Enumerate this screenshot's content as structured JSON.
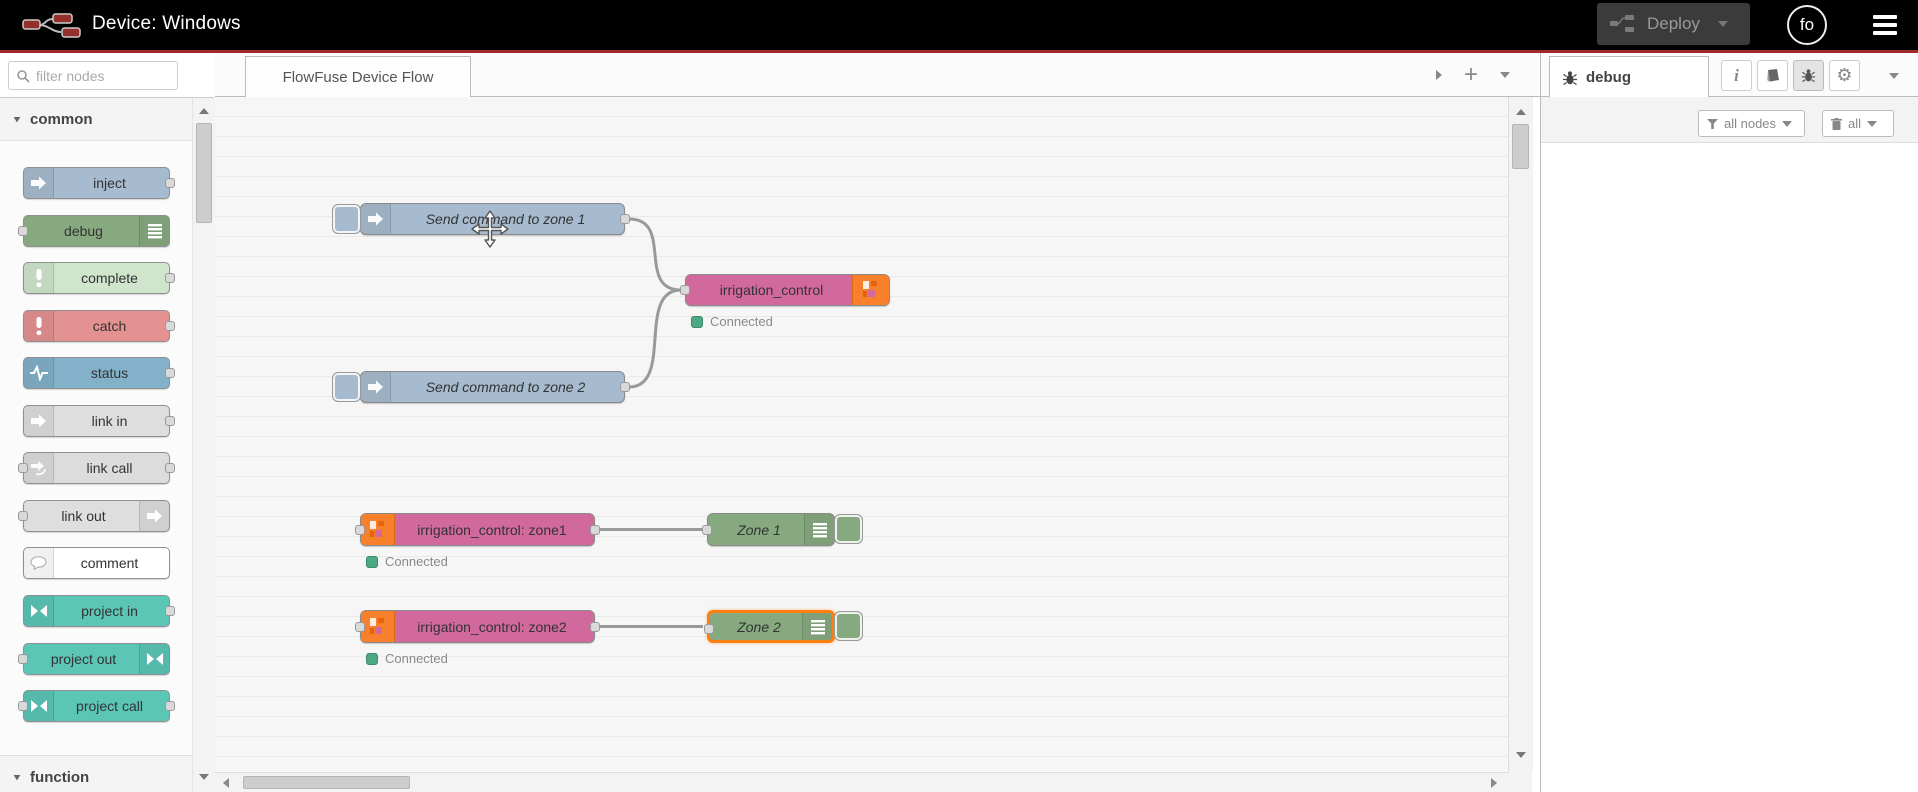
{
  "header": {
    "title": "Device: Windows",
    "deploy_label": "Deploy",
    "avatar_label": "fo"
  },
  "palette": {
    "filter_placeholder": "filter nodes",
    "category_common": "common",
    "category_function": "function",
    "items": [
      {
        "label": "inject",
        "color": "#a6bbcf",
        "icon": "inject-arrow-icon",
        "icon_side": "left",
        "ports": "out"
      },
      {
        "label": "debug",
        "color": "#87a980",
        "icon": "debug-list-icon",
        "icon_side": "right",
        "ports": "in"
      },
      {
        "label": "complete",
        "color": "#cfe6cd",
        "icon": "exclamation-icon",
        "icon_side": "left",
        "ports": "out"
      },
      {
        "label": "catch",
        "color": "#e49191",
        "icon": "exclamation-icon",
        "icon_side": "left",
        "ports": "out"
      },
      {
        "label": "status",
        "color": "#82b1c9",
        "icon": "pulse-icon",
        "icon_side": "left",
        "ports": "out"
      },
      {
        "label": "link in",
        "color": "#dedede",
        "icon": "link-arrow-icon",
        "icon_side": "left",
        "ports": "out"
      },
      {
        "label": "link call",
        "color": "#dcdcdc",
        "icon": "link-call-icon",
        "icon_side": "left",
        "ports": "both"
      },
      {
        "label": "link out",
        "color": "#dedede",
        "icon": "link-arrow-icon",
        "icon_side": "right",
        "ports": "in"
      },
      {
        "label": "comment",
        "color": "#ffffff",
        "icon": "comment-bubble-icon",
        "icon_side": "left",
        "ports": "none"
      },
      {
        "label": "project in",
        "color": "#5bc5b6",
        "icon": "project-link-icon",
        "icon_side": "left",
        "ports": "out"
      },
      {
        "label": "project out",
        "color": "#5bc5b6",
        "icon": "project-link-icon",
        "icon_side": "right",
        "ports": "in"
      },
      {
        "label": "project call",
        "color": "#5bc5b6",
        "icon": "project-link-icon",
        "icon_side": "left",
        "ports": "both"
      }
    ]
  },
  "workspace": {
    "tab_label": "FlowFuse Device Flow",
    "selection_color": "#ff7f0e",
    "status_connected": "Connected",
    "nodes": [
      {
        "id": "inject-zone1",
        "label": "Send command to zone 1",
        "color": "#a6bbcf",
        "italic": true,
        "kind": "inject"
      },
      {
        "id": "inject-zone2",
        "label": "Send command to zone 2",
        "color": "#a6bbcf",
        "italic": true,
        "kind": "inject"
      },
      {
        "id": "irrigation-control",
        "label": "irrigation_control",
        "color": "#d1699c",
        "italic": false,
        "kind": "project-out",
        "status": "Connected"
      },
      {
        "id": "irrigation-zone1",
        "label": "irrigation_control: zone1",
        "color": "#d1699c",
        "italic": false,
        "kind": "project-in",
        "status": "Connected"
      },
      {
        "id": "irrigation-zone2",
        "label": "irrigation_control: zone2",
        "color": "#d1699c",
        "italic": false,
        "kind": "project-in",
        "status": "Connected"
      },
      {
        "id": "zone1-debug",
        "label": "Zone 1",
        "color": "#87a980",
        "italic": true,
        "kind": "debug"
      },
      {
        "id": "zone2-debug",
        "label": "Zone 2",
        "color": "#87a980",
        "italic": true,
        "kind": "debug",
        "selected": true
      }
    ],
    "wires": [
      [
        "inject-zone1",
        "irrigation-control"
      ],
      [
        "inject-zone2",
        "irrigation-control"
      ],
      [
        "irrigation-zone1",
        "zone1-debug"
      ],
      [
        "irrigation-zone2",
        "zone2-debug"
      ]
    ]
  },
  "debug_panel": {
    "tab_label": "debug",
    "filter_button": "all nodes",
    "clear_button": "all"
  }
}
